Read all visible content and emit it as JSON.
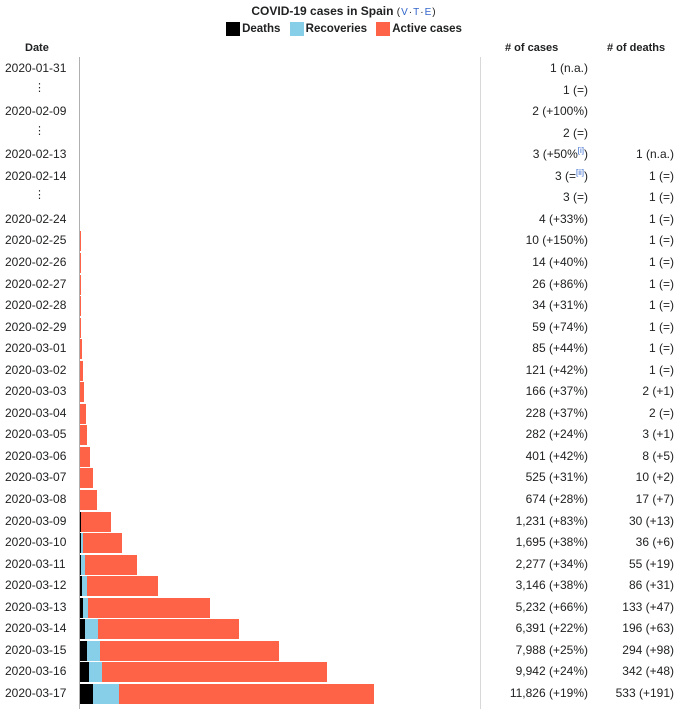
{
  "title": {
    "text": "COVID-19 cases in Spain",
    "vte_open": "(",
    "v": "V",
    "dot1": "·",
    "t": "T",
    "dot2": "·",
    "e": "E",
    "vte_close": ")"
  },
  "colors": {
    "deaths": "#000000",
    "recoveries": "#87cfe9",
    "active": "#ff6347"
  },
  "chart_data": {
    "type": "bar",
    "orientation": "horizontal-stacked",
    "title": "COVID-19 cases in Spain",
    "legend": [
      "Deaths",
      "Recoveries",
      "Active cases"
    ],
    "column_headers": {
      "date": "Date",
      "cases": "# of cases",
      "deaths": "# of deaths"
    },
    "rows": [
      {
        "date": "2020-01-31",
        "ellipsis": false,
        "cases_text": "1 (n.a.)",
        "cases_note": "",
        "cases_note_close": "",
        "deaths_text": "",
        "deaths": 0,
        "recoveries": 0,
        "active": 1
      },
      {
        "date": "⋮",
        "ellipsis": true,
        "cases_text": "1 (=)",
        "cases_note": "",
        "cases_note_close": "",
        "deaths_text": "",
        "deaths": 0,
        "recoveries": 0,
        "active": 1
      },
      {
        "date": "2020-02-09",
        "ellipsis": false,
        "cases_text": "2 (+100%)",
        "cases_note": "",
        "cases_note_close": "",
        "deaths_text": "",
        "deaths": 0,
        "recoveries": 0,
        "active": 2
      },
      {
        "date": "⋮",
        "ellipsis": true,
        "cases_text": "2 (=)",
        "cases_note": "",
        "cases_note_close": "",
        "deaths_text": "",
        "deaths": 0,
        "recoveries": 0,
        "active": 2
      },
      {
        "date": "2020-02-13",
        "ellipsis": false,
        "cases_text": "3 (+50%",
        "cases_note": "[i]",
        "cases_note_close": ")",
        "deaths_text": "1 (n.a.)",
        "deaths": 1,
        "recoveries": 0,
        "active": 2
      },
      {
        "date": "2020-02-14",
        "ellipsis": false,
        "cases_text": "3 (=",
        "cases_note": "[ii]",
        "cases_note_close": ")",
        "deaths_text": "1 (=)",
        "deaths": 1,
        "recoveries": 0,
        "active": 2
      },
      {
        "date": "⋮",
        "ellipsis": true,
        "cases_text": "3 (=)",
        "cases_note": "",
        "cases_note_close": "",
        "deaths_text": "1 (=)",
        "deaths": 1,
        "recoveries": 0,
        "active": 2
      },
      {
        "date": "2020-02-24",
        "ellipsis": false,
        "cases_text": "4 (+33%)",
        "cases_note": "",
        "cases_note_close": "",
        "deaths_text": "1 (=)",
        "deaths": 1,
        "recoveries": 0,
        "active": 3
      },
      {
        "date": "2020-02-25",
        "ellipsis": false,
        "cases_text": "10 (+150%)",
        "cases_note": "",
        "cases_note_close": "",
        "deaths_text": "1 (=)",
        "deaths": 1,
        "recoveries": 0,
        "active": 9
      },
      {
        "date": "2020-02-26",
        "ellipsis": false,
        "cases_text": "14 (+40%)",
        "cases_note": "",
        "cases_note_close": "",
        "deaths_text": "1 (=)",
        "deaths": 1,
        "recoveries": 0,
        "active": 13
      },
      {
        "date": "2020-02-27",
        "ellipsis": false,
        "cases_text": "26 (+86%)",
        "cases_note": "",
        "cases_note_close": "",
        "deaths_text": "1 (=)",
        "deaths": 1,
        "recoveries": 0,
        "active": 25
      },
      {
        "date": "2020-02-28",
        "ellipsis": false,
        "cases_text": "34 (+31%)",
        "cases_note": "",
        "cases_note_close": "",
        "deaths_text": "1 (=)",
        "deaths": 1,
        "recoveries": 0,
        "active": 33
      },
      {
        "date": "2020-02-29",
        "ellipsis": false,
        "cases_text": "59 (+74%)",
        "cases_note": "",
        "cases_note_close": "",
        "deaths_text": "1 (=)",
        "deaths": 1,
        "recoveries": 0,
        "active": 58
      },
      {
        "date": "2020-03-01",
        "ellipsis": false,
        "cases_text": "85 (+44%)",
        "cases_note": "",
        "cases_note_close": "",
        "deaths_text": "1 (=)",
        "deaths": 1,
        "recoveries": 0,
        "active": 84
      },
      {
        "date": "2020-03-02",
        "ellipsis": false,
        "cases_text": "121 (+42%)",
        "cases_note": "",
        "cases_note_close": "",
        "deaths_text": "1 (=)",
        "deaths": 1,
        "recoveries": 0,
        "active": 120
      },
      {
        "date": "2020-03-03",
        "ellipsis": false,
        "cases_text": "166 (+37%)",
        "cases_note": "",
        "cases_note_close": "",
        "deaths_text": "2 (+1)",
        "deaths": 2,
        "recoveries": 0,
        "active": 164
      },
      {
        "date": "2020-03-04",
        "ellipsis": false,
        "cases_text": "228 (+37%)",
        "cases_note": "",
        "cases_note_close": "",
        "deaths_text": "2 (=)",
        "deaths": 2,
        "recoveries": 0,
        "active": 226
      },
      {
        "date": "2020-03-05",
        "ellipsis": false,
        "cases_text": "282 (+24%)",
        "cases_note": "",
        "cases_note_close": "",
        "deaths_text": "3 (+1)",
        "deaths": 3,
        "recoveries": 0,
        "active": 279
      },
      {
        "date": "2020-03-06",
        "ellipsis": false,
        "cases_text": "401 (+42%)",
        "cases_note": "",
        "cases_note_close": "",
        "deaths_text": "8 (+5)",
        "deaths": 8,
        "recoveries": 0,
        "active": 393
      },
      {
        "date": "2020-03-07",
        "ellipsis": false,
        "cases_text": "525 (+31%)",
        "cases_note": "",
        "cases_note_close": "",
        "deaths_text": "10 (+2)",
        "deaths": 10,
        "recoveries": 0,
        "active": 515
      },
      {
        "date": "2020-03-08",
        "ellipsis": false,
        "cases_text": "674 (+28%)",
        "cases_note": "",
        "cases_note_close": "",
        "deaths_text": "17 (+7)",
        "deaths": 17,
        "recoveries": 0,
        "active": 657
      },
      {
        "date": "2020-03-09",
        "ellipsis": false,
        "cases_text": "1,231 (+83%)",
        "cases_note": "",
        "cases_note_close": "",
        "deaths_text": "30 (+13)",
        "deaths": 30,
        "recoveries": 0,
        "active": 1201
      },
      {
        "date": "2020-03-10",
        "ellipsis": false,
        "cases_text": "1,695 (+38%)",
        "cases_note": "",
        "cases_note_close": "",
        "deaths_text": "36 (+6)",
        "deaths": 36,
        "recoveries": 100,
        "active": 1559
      },
      {
        "date": "2020-03-11",
        "ellipsis": false,
        "cases_text": "2,277 (+34%)",
        "cases_note": "",
        "cases_note_close": "",
        "deaths_text": "55 (+19)",
        "deaths": 55,
        "recoveries": 150,
        "active": 2072
      },
      {
        "date": "2020-03-12",
        "ellipsis": false,
        "cases_text": "3,146 (+38%)",
        "cases_note": "",
        "cases_note_close": "",
        "deaths_text": "86 (+31)",
        "deaths": 86,
        "recoveries": 180,
        "active": 2880
      },
      {
        "date": "2020-03-13",
        "ellipsis": false,
        "cases_text": "5,232 (+66%)",
        "cases_note": "",
        "cases_note_close": "",
        "deaths_text": "133 (+47)",
        "deaths": 133,
        "recoveries": 190,
        "active": 4909
      },
      {
        "date": "2020-03-14",
        "ellipsis": false,
        "cases_text": "6,391 (+22%)",
        "cases_note": "",
        "cases_note_close": "",
        "deaths_text": "196 (+63)",
        "deaths": 196,
        "recoveries": 517,
        "active": 5678
      },
      {
        "date": "2020-03-15",
        "ellipsis": false,
        "cases_text": "7,988 (+25%)",
        "cases_note": "",
        "cases_note_close": "",
        "deaths_text": "294 (+98)",
        "deaths": 294,
        "recoveries": 517,
        "active": 7177
      },
      {
        "date": "2020-03-16",
        "ellipsis": false,
        "cases_text": "9,942 (+24%)",
        "cases_note": "",
        "cases_note_close": "",
        "deaths_text": "342 (+48)",
        "deaths": 342,
        "recoveries": 530,
        "active": 9070
      },
      {
        "date": "2020-03-17",
        "ellipsis": false,
        "cases_text": "11,826 (+19%)",
        "cases_note": "",
        "cases_note_close": "",
        "deaths_text": "533 (+191)",
        "deaths": 533,
        "recoveries": 1028,
        "active": 10265
      }
    ]
  }
}
